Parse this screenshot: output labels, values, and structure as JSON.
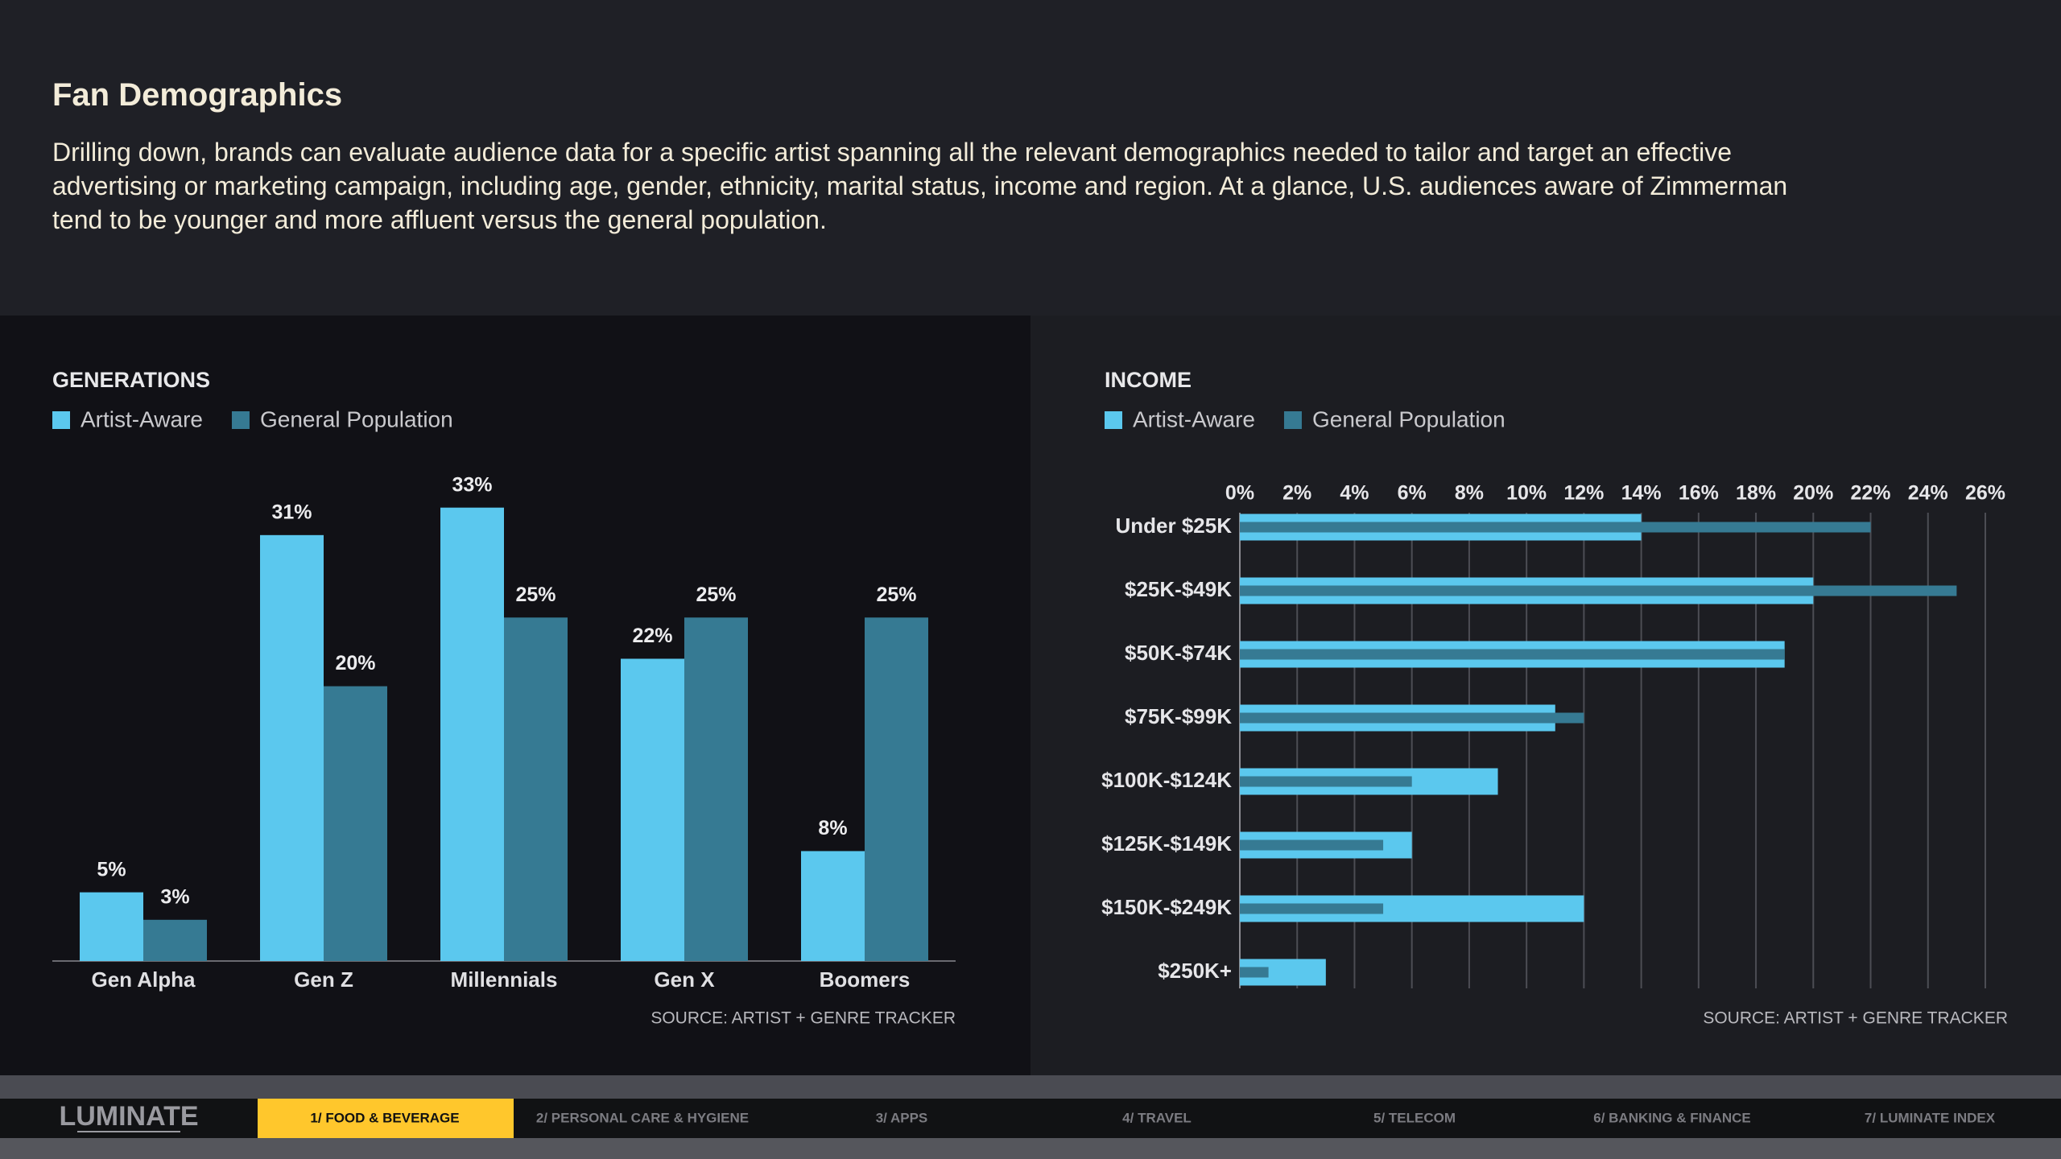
{
  "header": {
    "title": "Fan Demographics",
    "description": "Drilling down, brands can evaluate audience data for a specific artist spanning all the relevant demographics needed to tailor and target an effective advertising or marketing campaign, including age, gender, ethnicity, marital status, income and region. At a glance, U.S. audiences aware of Zimmerman tend to be younger and more affluent versus the general population."
  },
  "chart_data": [
    {
      "type": "bar",
      "title": "GENERATIONS",
      "categories": [
        "Gen Alpha",
        "Gen Z",
        "Millennials",
        "Gen X",
        "Boomers"
      ],
      "series": [
        {
          "name": "Artist-Aware",
          "color": "#5bc8ee",
          "values": [
            5,
            31,
            33,
            22,
            8
          ],
          "value_labels": [
            "5%",
            "31%",
            "33%",
            "22%",
            "8%"
          ]
        },
        {
          "name": "General Population",
          "color": "#367a93",
          "values": [
            3,
            20,
            25,
            25,
            25
          ],
          "value_labels": [
            "3%",
            "20%",
            "25%",
            "25%",
            "25%"
          ]
        }
      ],
      "source": "SOURCE: ARTIST + GENRE TRACKER"
    },
    {
      "type": "barh",
      "title": "INCOME",
      "categories": [
        "Under $25K",
        "$25K-$49K",
        "$50K-$74K",
        "$75K-$99K",
        "$100K-$124K",
        "$125K-$149K",
        "$150K-$249K",
        "$250K+"
      ],
      "series": [
        {
          "name": "Artist-Aware",
          "color": "#5bc8ee",
          "values": [
            14,
            20,
            19,
            11,
            9,
            6,
            12,
            3
          ]
        },
        {
          "name": "General Population",
          "color": "#367a93",
          "values": [
            22,
            25,
            19,
            12,
            6,
            5,
            5,
            1
          ]
        }
      ],
      "xlim": [
        0,
        26
      ],
      "xticks": [
        {
          "value": 0,
          "label": "0%"
        },
        {
          "value": 2,
          "label": "2%"
        },
        {
          "value": 4,
          "label": "4%"
        },
        {
          "value": 6,
          "label": "6%"
        },
        {
          "value": 8,
          "label": "8%"
        },
        {
          "value": 10,
          "label": "10%"
        },
        {
          "value": 12,
          "label": "12%"
        },
        {
          "value": 14,
          "label": "14%"
        },
        {
          "value": 16,
          "label": "16%"
        },
        {
          "value": 18,
          "label": "18%"
        },
        {
          "value": 20,
          "label": "20%"
        },
        {
          "value": 22,
          "label": "22%"
        },
        {
          "value": 24,
          "label": "24%"
        },
        {
          "value": 26,
          "label": "26%"
        }
      ],
      "grid": true,
      "source": "SOURCE: ARTIST + GENRE TRACKER"
    }
  ],
  "nav": {
    "logo": "LUMINATE",
    "items": [
      "1/ FOOD & BEVERAGE",
      "2/ PERSONAL CARE & HYGIENE",
      "3/ APPS",
      "4/ TRAVEL",
      "5/ TELECOM",
      "6/ BANKING & FINANCE",
      "7/ LUMINATE INDEX"
    ],
    "active": 0
  }
}
